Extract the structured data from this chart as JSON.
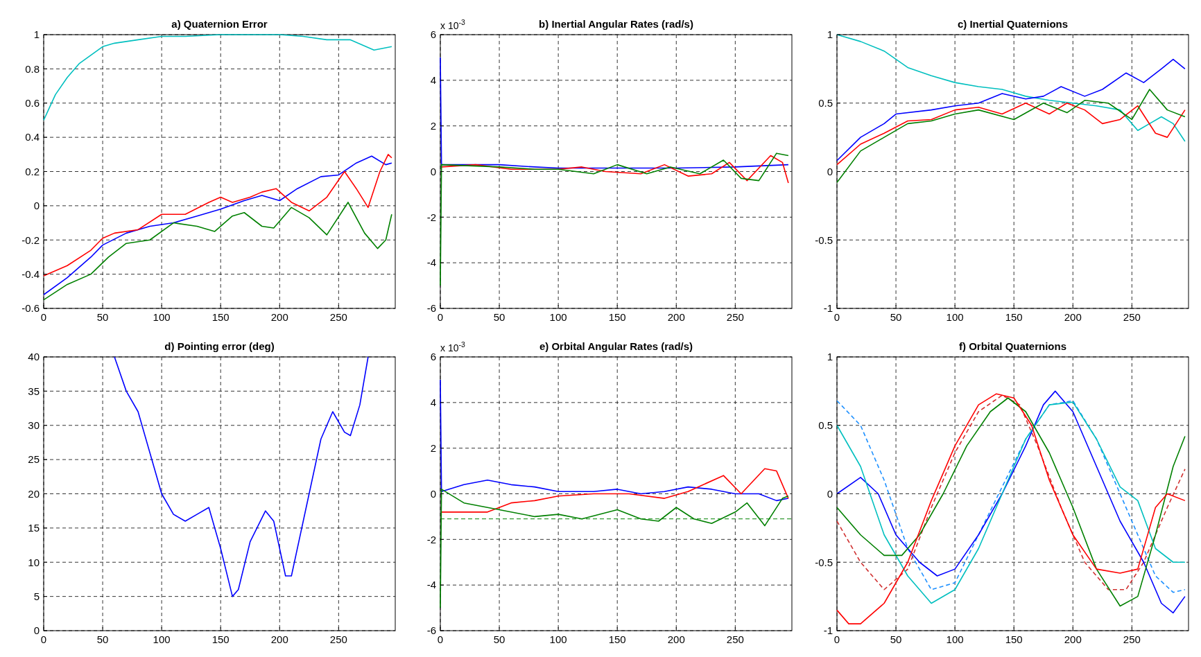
{
  "chart_data": [
    {
      "type": "line",
      "title": "a) Quaternion Error",
      "xlim": [
        0,
        298
      ],
      "xticks": [
        0,
        50,
        100,
        150,
        200,
        250
      ],
      "ylim": [
        -0.6,
        1
      ],
      "yticks": [
        -0.6,
        -0.4,
        -0.2,
        0,
        0.2,
        0.4,
        0.6,
        0.8,
        1
      ],
      "grid": true,
      "series": [
        {
          "color": "#00bfbf",
          "x": [
            0,
            10,
            20,
            30,
            40,
            50,
            60,
            80,
            100,
            120,
            150,
            200,
            220,
            240,
            260,
            280,
            295
          ],
          "values": [
            0.5,
            0.65,
            0.75,
            0.83,
            0.88,
            0.93,
            0.95,
            0.97,
            0.99,
            0.99,
            1,
            1,
            0.99,
            0.97,
            0.97,
            0.91,
            0.93
          ]
        },
        {
          "color": "#0000ff",
          "x": [
            0,
            20,
            40,
            50,
            70,
            90,
            110,
            130,
            150,
            170,
            185,
            200,
            215,
            235,
            250,
            265,
            278,
            290,
            295
          ],
          "values": [
            -0.52,
            -0.42,
            -0.3,
            -0.23,
            -0.16,
            -0.12,
            -0.1,
            -0.06,
            -0.02,
            0.03,
            0.06,
            0.03,
            0.1,
            0.17,
            0.18,
            0.25,
            0.29,
            0.24,
            0.25
          ]
        },
        {
          "color": "#ff0000",
          "x": [
            0,
            20,
            40,
            50,
            60,
            80,
            100,
            120,
            140,
            150,
            160,
            175,
            185,
            197,
            210,
            225,
            240,
            255,
            265,
            275,
            285,
            292,
            295
          ],
          "values": [
            -0.41,
            -0.35,
            -0.26,
            -0.19,
            -0.16,
            -0.14,
            -0.05,
            -0.05,
            0.02,
            0.05,
            0.02,
            0.05,
            0.08,
            0.1,
            0.02,
            -0.03,
            0.05,
            0.2,
            0.1,
            -0.01,
            0.2,
            0.3,
            0.28
          ]
        },
        {
          "color": "#008000",
          "x": [
            0,
            20,
            40,
            55,
            70,
            90,
            110,
            130,
            145,
            160,
            170,
            185,
            195,
            210,
            225,
            240,
            258,
            272,
            283,
            290,
            295
          ],
          "values": [
            -0.55,
            -0.46,
            -0.4,
            -0.3,
            -0.22,
            -0.2,
            -0.1,
            -0.12,
            -0.15,
            -0.06,
            -0.04,
            -0.12,
            -0.13,
            -0.01,
            -0.07,
            -0.17,
            0.02,
            -0.16,
            -0.25,
            -0.2,
            -0.05
          ]
        }
      ]
    },
    {
      "type": "line",
      "title": "b) Inertial Angular Rates (rad/s)",
      "annotations": [
        "x 10$^{-3}$"
      ],
      "xlim": [
        0,
        298
      ],
      "xticks": [
        0,
        50,
        100,
        150,
        200,
        250
      ],
      "ylim": [
        -6,
        6
      ],
      "yticks": [
        -6,
        -4,
        -2,
        0,
        2,
        4,
        6
      ],
      "grid": true,
      "series": [
        {
          "color": "#0000ff",
          "x": [
            0,
            1,
            50,
            80,
            100,
            150,
            200,
            250,
            295
          ],
          "values": [
            5,
            0.3,
            0.3,
            0.2,
            0.15,
            0.15,
            0.15,
            0.2,
            0.3
          ]
        },
        {
          "color": "#ff0000",
          "x": [
            1,
            30,
            60,
            100,
            120,
            140,
            170,
            190,
            210,
            230,
            245,
            260,
            280,
            290,
            295
          ],
          "values": [
            0.2,
            0.3,
            0.1,
            0.1,
            0.2,
            0,
            -0.1,
            0.3,
            -0.2,
            -0.1,
            0.4,
            -0.4,
            0.7,
            0.4,
            -0.5
          ]
        },
        {
          "color": "#008000",
          "x": [
            0,
            1,
            50,
            80,
            100,
            130,
            150,
            175,
            195,
            220,
            240,
            255,
            270,
            285,
            295
          ],
          "values": [
            -5,
            0.3,
            0.2,
            0.1,
            0.1,
            -0.1,
            0.3,
            -0.1,
            0.2,
            -0.1,
            0.5,
            -0.3,
            -0.4,
            0.8,
            0.7
          ]
        }
      ]
    },
    {
      "type": "line",
      "title": "c) Inertial Quaternions",
      "xlim": [
        0,
        298
      ],
      "xticks": [
        0,
        50,
        100,
        150,
        200,
        250
      ],
      "ylim": [
        -1,
        1
      ],
      "yticks": [
        -1,
        -0.5,
        0,
        0.5,
        1
      ],
      "grid": true,
      "series": [
        {
          "color": "#00bfbf",
          "x": [
            0,
            20,
            40,
            60,
            80,
            100,
            120,
            140,
            160,
            180,
            200,
            220,
            240,
            255,
            265,
            275,
            285,
            295
          ],
          "values": [
            1,
            0.95,
            0.88,
            0.76,
            0.7,
            0.65,
            0.62,
            0.6,
            0.55,
            0.52,
            0.5,
            0.48,
            0.45,
            0.3,
            0.35,
            0.4,
            0.35,
            0.22
          ]
        },
        {
          "color": "#0000ff",
          "x": [
            0,
            20,
            40,
            50,
            80,
            100,
            120,
            140,
            160,
            175,
            190,
            210,
            225,
            245,
            260,
            275,
            285,
            295
          ],
          "values": [
            0.08,
            0.25,
            0.35,
            0.42,
            0.45,
            0.48,
            0.5,
            0.57,
            0.53,
            0.55,
            0.62,
            0.55,
            0.6,
            0.72,
            0.65,
            0.75,
            0.82,
            0.75
          ]
        },
        {
          "color": "#ff0000",
          "x": [
            0,
            20,
            40,
            60,
            80,
            100,
            120,
            140,
            160,
            180,
            195,
            210,
            225,
            240,
            255,
            270,
            280,
            295
          ],
          "values": [
            0.05,
            0.2,
            0.28,
            0.37,
            0.38,
            0.45,
            0.47,
            0.42,
            0.5,
            0.42,
            0.5,
            0.45,
            0.35,
            0.38,
            0.48,
            0.28,
            0.25,
            0.45
          ]
        },
        {
          "color": "#008000",
          "x": [
            0,
            20,
            40,
            60,
            80,
            100,
            120,
            150,
            175,
            195,
            210,
            230,
            250,
            265,
            280,
            295
          ],
          "values": [
            -0.08,
            0.15,
            0.25,
            0.35,
            0.37,
            0.42,
            0.45,
            0.38,
            0.5,
            0.43,
            0.52,
            0.5,
            0.38,
            0.6,
            0.45,
            0.4
          ]
        }
      ]
    },
    {
      "type": "line",
      "title": "d) Pointing error (deg)",
      "xlim": [
        0,
        298
      ],
      "xticks": [
        0,
        50,
        100,
        150,
        200,
        250
      ],
      "ylim": [
        0,
        40
      ],
      "yticks": [
        0,
        5,
        10,
        15,
        20,
        25,
        30,
        35,
        40
      ],
      "grid": true,
      "series": [
        {
          "color": "#0000ff",
          "x": [
            60,
            70,
            80,
            90,
            100,
            110,
            120,
            130,
            140,
            150,
            160,
            165,
            175,
            188,
            195,
            205,
            210,
            220,
            235,
            245,
            255,
            260,
            268,
            275
          ],
          "values": [
            40,
            35,
            32,
            26,
            20,
            17,
            16,
            17,
            18,
            12,
            5,
            6,
            13,
            17.5,
            16,
            8,
            8,
            16,
            28,
            32,
            29,
            28.5,
            33,
            40
          ]
        }
      ]
    },
    {
      "type": "line",
      "title": "e) Orbital Angular Rates (rad/s)",
      "annotations": [
        "x 10$^{-3}$"
      ],
      "xlim": [
        0,
        298
      ],
      "xticks": [
        0,
        50,
        100,
        150,
        200,
        250
      ],
      "ylim": [
        -6,
        6
      ],
      "yticks": [
        -6,
        -4,
        -2,
        0,
        2,
        4,
        6
      ],
      "grid": true,
      "ref_lines": [
        {
          "axis": "y",
          "value": -1.1,
          "color": "#008000",
          "line_style": "dashed"
        }
      ],
      "series": [
        {
          "color": "#0000ff",
          "x": [
            0,
            1,
            20,
            40,
            60,
            80,
            100,
            130,
            150,
            170,
            190,
            210,
            230,
            250,
            270,
            285,
            295
          ],
          "values": [
            5,
            0.1,
            0.4,
            0.6,
            0.4,
            0.3,
            0.1,
            0.1,
            0.2,
            0,
            0.1,
            0.3,
            0.2,
            0,
            0,
            -0.3,
            -0.2
          ]
        },
        {
          "color": "#ff0000",
          "x": [
            1,
            40,
            60,
            80,
            100,
            130,
            160,
            190,
            210,
            240,
            255,
            275,
            285,
            295
          ],
          "values": [
            -0.8,
            -0.8,
            -0.4,
            -0.3,
            -0.1,
            0,
            0,
            -0.2,
            0.1,
            0.8,
            0,
            1.1,
            1,
            -0.2
          ]
        },
        {
          "color": "#008000",
          "x": [
            0,
            1,
            20,
            50,
            80,
            100,
            120,
            150,
            170,
            185,
            200,
            215,
            230,
            250,
            260,
            275,
            290,
            295
          ],
          "values": [
            -5,
            0.2,
            -0.4,
            -0.7,
            -1,
            -0.9,
            -1.1,
            -0.7,
            -1.1,
            -1.2,
            -0.6,
            -1.1,
            -1.3,
            -0.8,
            -0.4,
            -1.4,
            -0.2,
            -0.1
          ]
        }
      ]
    },
    {
      "type": "line",
      "title": "f) Orbital Quaternions",
      "xlim": [
        0,
        298
      ],
      "xticks": [
        0,
        50,
        100,
        150,
        200,
        250
      ],
      "ylim": [
        -1,
        1
      ],
      "yticks": [
        -1,
        -0.5,
        0,
        0.5,
        1
      ],
      "grid": true,
      "series": [
        {
          "color": "#1e90ff",
          "line_style": "dashed",
          "x": [
            0,
            20,
            40,
            60,
            80,
            100,
            120,
            140,
            160,
            180,
            200,
            220,
            240,
            255,
            270,
            285,
            295
          ],
          "values": [
            0.68,
            0.5,
            0.1,
            -0.4,
            -0.7,
            -0.65,
            -0.3,
            0.05,
            0.4,
            0.65,
            0.68,
            0.4,
            0,
            -0.3,
            -0.6,
            -0.72,
            -0.7
          ]
        },
        {
          "color": "#d03030",
          "line_style": "dashed",
          "x": [
            0,
            20,
            40,
            60,
            80,
            100,
            120,
            140,
            155,
            170,
            190,
            210,
            230,
            245,
            260,
            280,
            295
          ],
          "values": [
            -0.2,
            -0.5,
            -0.7,
            -0.55,
            -0.1,
            0.3,
            0.6,
            0.72,
            0.65,
            0.35,
            -0.1,
            -0.5,
            -0.7,
            -0.7,
            -0.5,
            -0.1,
            0.18
          ]
        },
        {
          "color": "#0000ff",
          "x": [
            0,
            20,
            35,
            50,
            70,
            85,
            100,
            120,
            140,
            160,
            175,
            185,
            200,
            220,
            240,
            260,
            275,
            285,
            295
          ],
          "values": [
            0,
            0.12,
            0,
            -0.3,
            -0.5,
            -0.6,
            -0.55,
            -0.3,
            0,
            0.35,
            0.65,
            0.75,
            0.6,
            0.2,
            -0.2,
            -0.5,
            -0.8,
            -0.87,
            -0.75
          ]
        },
        {
          "color": "#00bfbf",
          "x": [
            0,
            20,
            40,
            60,
            80,
            100,
            120,
            140,
            160,
            180,
            200,
            220,
            240,
            255,
            270,
            285,
            295
          ],
          "values": [
            0.5,
            0.2,
            -0.3,
            -0.6,
            -0.8,
            -0.7,
            -0.4,
            0,
            0.4,
            0.65,
            0.67,
            0.4,
            0.05,
            -0.05,
            -0.4,
            -0.5,
            -0.5
          ]
        },
        {
          "color": "#008000",
          "x": [
            0,
            20,
            40,
            55,
            70,
            90,
            110,
            130,
            145,
            160,
            180,
            200,
            220,
            240,
            255,
            270,
            285,
            295
          ],
          "values": [
            -0.1,
            -0.3,
            -0.45,
            -0.45,
            -0.3,
            0,
            0.35,
            0.6,
            0.7,
            0.6,
            0.3,
            -0.1,
            -0.55,
            -0.82,
            -0.75,
            -0.3,
            0.2,
            0.42
          ]
        },
        {
          "color": "#ff0000",
          "x": [
            0,
            10,
            20,
            40,
            60,
            80,
            100,
            120,
            135,
            150,
            165,
            180,
            200,
            220,
            240,
            255,
            270,
            280,
            295
          ],
          "values": [
            -0.85,
            -0.95,
            -0.95,
            -0.8,
            -0.5,
            -0.05,
            0.35,
            0.65,
            0.73,
            0.7,
            0.5,
            0.1,
            -0.3,
            -0.55,
            -0.58,
            -0.55,
            -0.1,
            0,
            -0.05
          ]
        }
      ]
    }
  ]
}
